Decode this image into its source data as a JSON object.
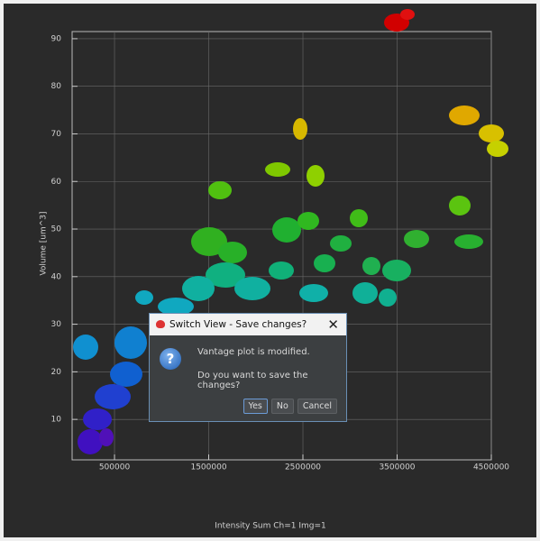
{
  "plot": {
    "x_axis_label": "Intensity Sum Ch=1 Img=1",
    "y_axis_label": "Volume [um^3]",
    "xlim": [
      50000,
      4500000
    ],
    "ylim": [
      1.5,
      91.5
    ],
    "xticks": [
      500000,
      1500000,
      2500000,
      3500000,
      4500000
    ],
    "yticks": [
      10,
      20,
      30,
      40,
      50,
      60,
      70,
      80,
      90
    ],
    "grid": true
  },
  "dialog": {
    "title": "Switch View - Save changes?",
    "message": "Vantage plot is modified.",
    "question": "Do you want to save the changes?",
    "buttons": [
      "Yes",
      "No",
      "Cancel"
    ]
  }
}
